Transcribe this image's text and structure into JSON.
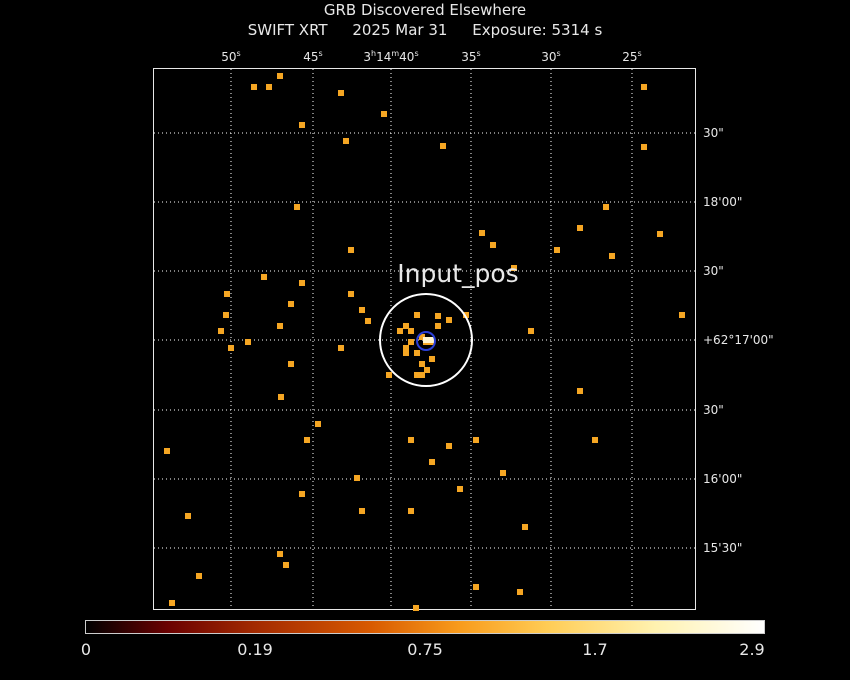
{
  "title": "GRB Discovered Elsewhere",
  "instrument": "SWIFT XRT",
  "date": "2025 Mar 31",
  "exposure": "Exposure: 5314 s",
  "region_label": "Input_pos",
  "ra_ticks": [
    {
      "label": "50s",
      "text": "50",
      "unit": "s"
    },
    {
      "label": "45s",
      "text": "45",
      "unit": "s"
    },
    {
      "label": "3h14m40s",
      "text": "3h14m40s"
    },
    {
      "label": "35s",
      "text": "35",
      "unit": "s"
    },
    {
      "label": "30s",
      "text": "30",
      "unit": "s"
    },
    {
      "label": "25s",
      "text": "25",
      "unit": "s"
    }
  ],
  "dec_ticks": [
    "30\"",
    "18'00\"",
    "30\"",
    "+62°17'00\"",
    "30\"",
    "16'00\"",
    "15'30\""
  ],
  "colorbar_labels": [
    "0",
    "0.19",
    "0.75",
    "1.7",
    "2.9"
  ],
  "colors": {
    "photon": "#f5a623",
    "circle": "#ffffff",
    "center_marker": "#2a3fd6",
    "grid": "#ffffff"
  }
}
